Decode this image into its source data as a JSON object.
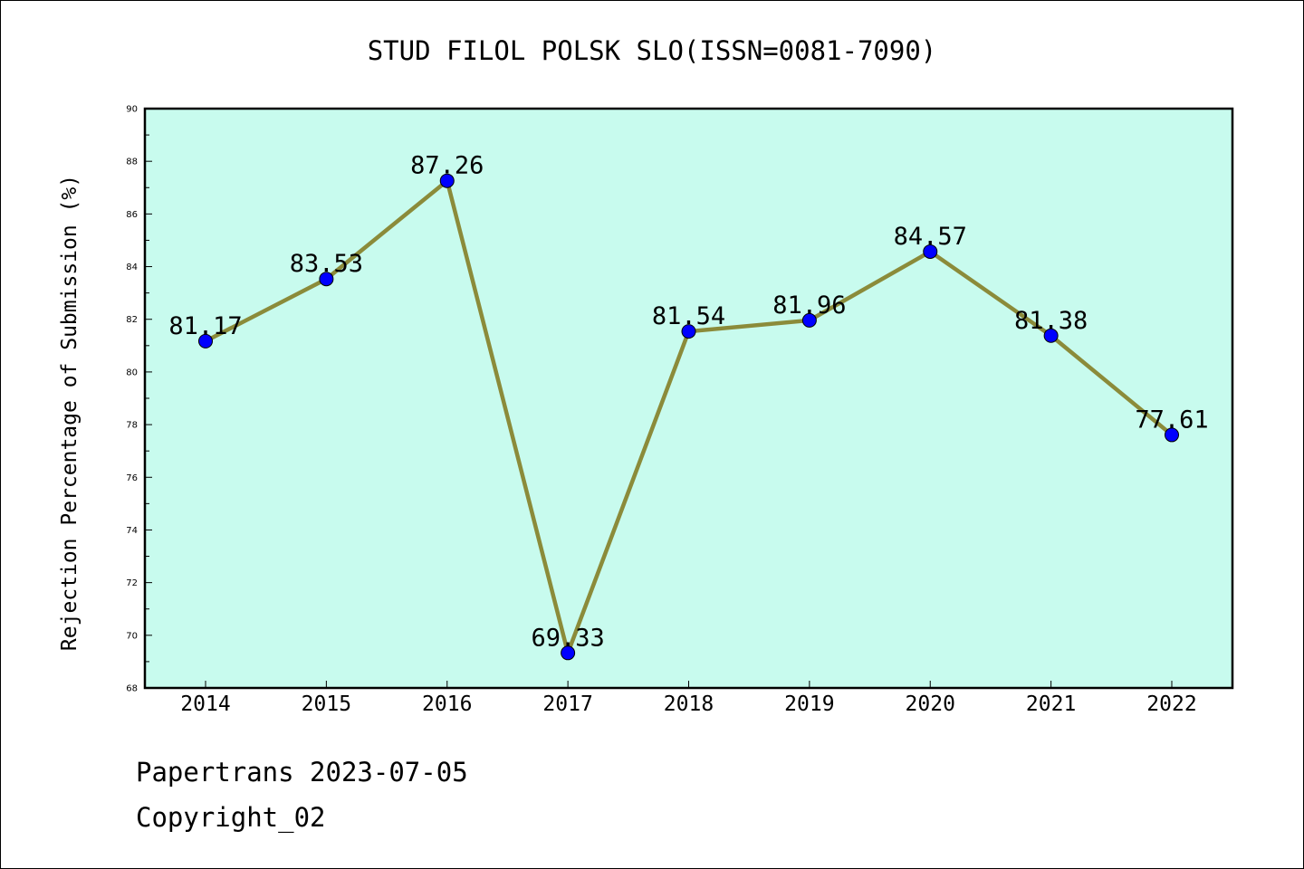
{
  "chart_data": {
    "type": "line",
    "title": "STUD FILOL POLSK SLO(ISSN=0081-7090)",
    "xlabel": "",
    "ylabel": "Rejection Percentage of Submission (%)",
    "categories": [
      "2014",
      "2015",
      "2016",
      "2017",
      "2018",
      "2019",
      "2020",
      "2021",
      "2022"
    ],
    "values": [
      81.17,
      83.53,
      87.26,
      69.33,
      81.54,
      81.96,
      84.57,
      81.38,
      77.61
    ],
    "data_labels": [
      "81.17",
      "83.53",
      "87.26",
      "69.33",
      "81.54",
      "81.96",
      "84.57",
      "81.38",
      "77.61"
    ],
    "ylim": [
      68,
      90
    ],
    "yticks": [
      68,
      70,
      72,
      74,
      76,
      78,
      80,
      82,
      84,
      86,
      88,
      90
    ],
    "grid": false,
    "colors": {
      "plot_background": "#c8fbee",
      "line": "#8b8b3a",
      "marker": "#0000ff"
    }
  },
  "footer": {
    "line1": "Papertrans 2023-07-05",
    "line2": "Copyright_02"
  }
}
